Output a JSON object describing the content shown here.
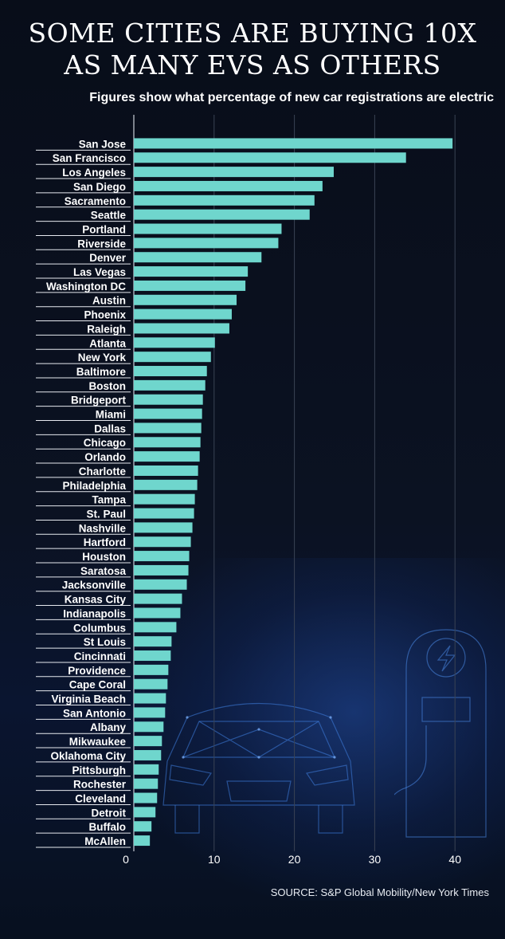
{
  "title_lines": [
    "SOME CITIES ARE BUYING 10X",
    "AS MANY EVS AS OTHERS"
  ],
  "subtitle": "Figures show what percentage of new car registrations are electric",
  "source": "SOURCE: S&P Global Mobility/New York Times",
  "colors": {
    "bar": "#6fd6cd",
    "gridline": "#3a4354",
    "text": "#ffffff",
    "background": "#0a0f1d"
  },
  "decoration": [
    "car-illustration",
    "charging-station-illustration"
  ],
  "chart_data": {
    "type": "bar",
    "orientation": "horizontal",
    "title": "SOME CITIES ARE BUYING 10X AS MANY EVS AS OTHERS",
    "subtitle": "Figures show what percentage of new car registrations are electric",
    "categories": [
      "San Jose",
      "San Francisco",
      "Los Angeles",
      "San Diego",
      "Sacramento",
      "Seattle",
      "Portland",
      "Riverside",
      "Denver",
      "Las Vegas",
      "Washington DC",
      "Austin",
      "Phoenix",
      "Raleigh",
      "Atlanta",
      "New York",
      "Baltimore",
      "Boston",
      "Bridgeport",
      "Miami",
      "Dallas",
      "Chicago",
      "Orlando",
      "Charlotte",
      "Philadelphia",
      "Tampa",
      "St. Paul",
      "Nashville",
      "Hartford",
      "Houston",
      "Saratosa",
      "Jacksonville",
      "Kansas City",
      "Indianapolis",
      "Columbus",
      "St Louis",
      "Cincinnati",
      "Providence",
      "Cape Coral",
      "Virginia Beach",
      "San Antonio",
      "Albany",
      "Mikwaukee",
      "Oklahoma City",
      "Pittsburgh",
      "Rochester",
      "Cleveland",
      "Detroit",
      "Buffalo",
      "McAllen"
    ],
    "values": [
      39.7,
      33.9,
      24.9,
      23.5,
      22.5,
      21.9,
      18.4,
      18.0,
      15.9,
      14.2,
      13.9,
      12.8,
      12.2,
      11.9,
      10.1,
      9.6,
      9.1,
      8.9,
      8.6,
      8.5,
      8.4,
      8.3,
      8.2,
      8.0,
      7.9,
      7.6,
      7.5,
      7.3,
      7.1,
      6.9,
      6.8,
      6.6,
      6.0,
      5.8,
      5.3,
      4.7,
      4.6,
      4.3,
      4.2,
      4.0,
      3.9,
      3.7,
      3.5,
      3.4,
      3.1,
      3.0,
      2.9,
      2.7,
      2.2,
      2.0
    ],
    "xticks": [
      0,
      10,
      20,
      30,
      40
    ],
    "xlim": [
      0,
      45
    ],
    "grid": true,
    "legend": "none"
  }
}
